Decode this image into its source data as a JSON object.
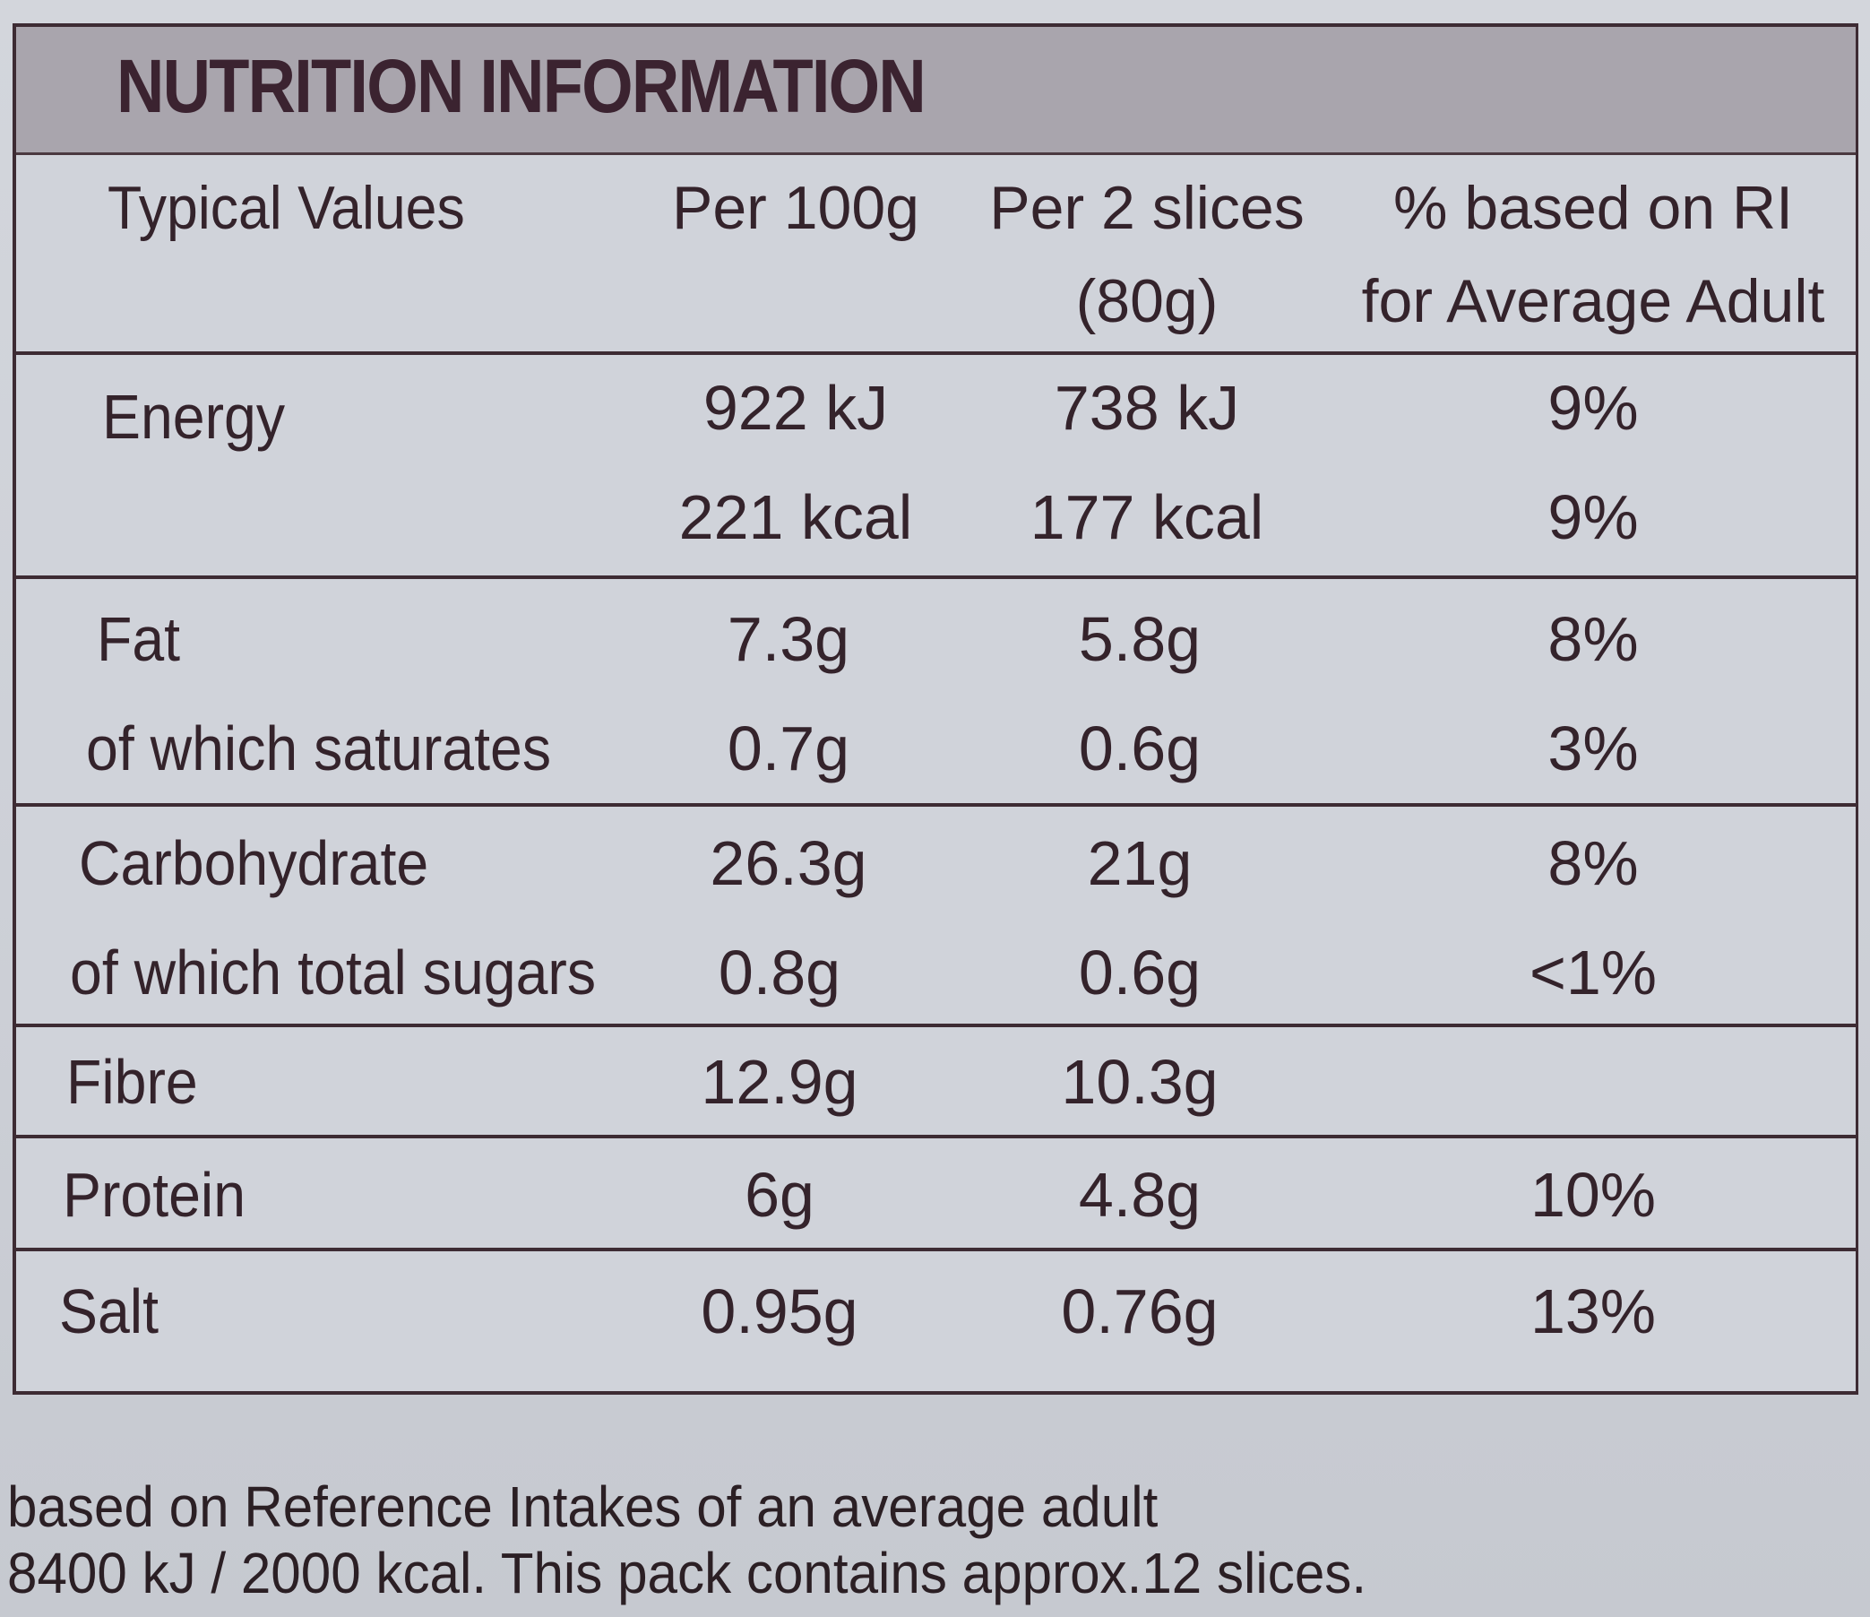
{
  "panel": {
    "title": "NUTRITION INFORMATION"
  },
  "header": {
    "col1": "Typical Values",
    "col2": "Per 100g",
    "col3_line1": "Per 2 slices",
    "col3_line2": "(80g)",
    "col4_line1": "% based on RI",
    "col4_line2": "for Average Adult"
  },
  "rows": {
    "energy": {
      "name": "Energy",
      "per100_kj": "922 kJ",
      "per_serving_kj": "738 kJ",
      "ri_kj": "9%",
      "per100_kcal": "221 kcal",
      "per_serving_kcal": "177 kcal",
      "ri_kcal": "9%"
    },
    "fat": {
      "name": "Fat",
      "per100": "7.3g",
      "per_serving": "5.8g",
      "ri": "8%"
    },
    "saturates": {
      "name": "of which saturates",
      "per100": "0.7g",
      "per_serving": "0.6g",
      "ri": "3%"
    },
    "carbohydrate": {
      "name": "Carbohydrate",
      "per100": "26.3g",
      "per_serving": "21g",
      "ri": "8%"
    },
    "sugars": {
      "name": "of which total sugars",
      "per100": "0.8g",
      "per_serving": "0.6g",
      "ri": "<1%"
    },
    "fibre": {
      "name": "Fibre",
      "per100": "12.9g",
      "per_serving": "10.3g",
      "ri": ""
    },
    "protein": {
      "name": "Protein",
      "per100": "6g",
      "per_serving": "4.8g",
      "ri": "10%"
    },
    "salt": {
      "name": "Salt",
      "per100": "0.95g",
      "per_serving": "0.76g",
      "ri": "13%"
    }
  },
  "footer": {
    "line1": "based on Reference Intakes of an average adult",
    "line2": "8400 kJ / 2000 kcal. This pack contains approx.12 slices."
  }
}
